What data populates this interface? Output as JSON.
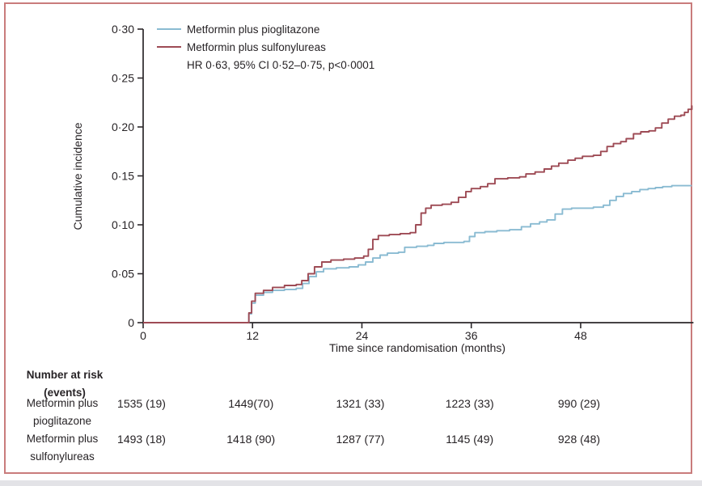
{
  "figure": {
    "border_color": "#c97c7c",
    "background": "#ffffff",
    "text_color": "#272326"
  },
  "legend": {
    "items": [
      {
        "label": "Metformin plus pioglitazone",
        "color": "#8abbd2"
      },
      {
        "label": "Metformin plus sulfonylureas",
        "color": "#9e4b55"
      }
    ],
    "annotation": "HR 0·63, 95% CI 0·52–0·75, p<0·0001"
  },
  "chart_data": {
    "type": "line",
    "subtype": "step-cumulative-incidence",
    "title": "",
    "xlabel": "Time since randomisation (months)",
    "ylabel": "Cumulative incidence",
    "xlim": [
      0,
      60.2
    ],
    "ylim": [
      0,
      0.3
    ],
    "grid": false,
    "legend_position": "top-left-inside",
    "x_ticks": [
      {
        "v": 0,
        "label": "0"
      },
      {
        "v": 12,
        "label": "12"
      },
      {
        "v": 24,
        "label": "24"
      },
      {
        "v": 36,
        "label": "36"
      },
      {
        "v": 48,
        "label": "48"
      }
    ],
    "y_ticks": [
      {
        "v": 0,
        "label": "0"
      },
      {
        "v": 0.05,
        "label": "0·05"
      },
      {
        "v": 0.1,
        "label": "0·10"
      },
      {
        "v": 0.15,
        "label": "0·15"
      },
      {
        "v": 0.2,
        "label": "0·20"
      },
      {
        "v": 0.25,
        "label": "0·25"
      },
      {
        "v": 0.3,
        "label": "0·30"
      }
    ],
    "series": [
      {
        "name": "Metformin plus pioglitazone",
        "color": "#8abbd2",
        "points": [
          [
            0,
            0
          ],
          [
            11.2,
            0
          ],
          [
            11.6,
            0.009
          ],
          [
            11.9,
            0.02
          ],
          [
            12.3,
            0.028
          ],
          [
            13.2,
            0.031
          ],
          [
            14.2,
            0.033
          ],
          [
            15.5,
            0.034
          ],
          [
            16.8,
            0.035
          ],
          [
            17.5,
            0.04
          ],
          [
            18.2,
            0.047
          ],
          [
            19.0,
            0.052
          ],
          [
            19.8,
            0.055
          ],
          [
            21.2,
            0.056
          ],
          [
            22.6,
            0.057
          ],
          [
            23.6,
            0.059
          ],
          [
            24.4,
            0.062
          ],
          [
            25.2,
            0.066
          ],
          [
            26.0,
            0.069
          ],
          [
            26.8,
            0.071
          ],
          [
            28.0,
            0.072
          ],
          [
            28.7,
            0.077
          ],
          [
            30.0,
            0.078
          ],
          [
            31.2,
            0.079
          ],
          [
            31.9,
            0.081
          ],
          [
            33.0,
            0.082
          ],
          [
            34.4,
            0.082
          ],
          [
            35.2,
            0.083
          ],
          [
            35.8,
            0.088
          ],
          [
            36.4,
            0.092
          ],
          [
            37.5,
            0.093
          ],
          [
            38.8,
            0.094
          ],
          [
            40.2,
            0.095
          ],
          [
            41.5,
            0.098
          ],
          [
            42.5,
            0.101
          ],
          [
            43.5,
            0.103
          ],
          [
            44.3,
            0.105
          ],
          [
            45.2,
            0.111
          ],
          [
            46.0,
            0.116
          ],
          [
            47.0,
            0.117
          ],
          [
            48.2,
            0.117
          ],
          [
            49.4,
            0.118
          ],
          [
            50.5,
            0.12
          ],
          [
            51.2,
            0.125
          ],
          [
            51.9,
            0.129
          ],
          [
            52.7,
            0.132
          ],
          [
            53.6,
            0.134
          ],
          [
            54.5,
            0.136
          ],
          [
            55.4,
            0.137
          ],
          [
            56.2,
            0.138
          ],
          [
            57.0,
            0.139
          ],
          [
            58.0,
            0.14
          ],
          [
            60.2,
            0.14
          ]
        ]
      },
      {
        "name": "Metformin plus sulfonylureas",
        "color": "#9e4b55",
        "points": [
          [
            0,
            0
          ],
          [
            11.2,
            0
          ],
          [
            11.6,
            0.01
          ],
          [
            11.9,
            0.022
          ],
          [
            12.3,
            0.03
          ],
          [
            13.2,
            0.033
          ],
          [
            14.2,
            0.036
          ],
          [
            15.5,
            0.038
          ],
          [
            16.8,
            0.039
          ],
          [
            17.4,
            0.043
          ],
          [
            18.1,
            0.05
          ],
          [
            18.8,
            0.057
          ],
          [
            19.6,
            0.062
          ],
          [
            20.6,
            0.064
          ],
          [
            22.0,
            0.065
          ],
          [
            23.2,
            0.066
          ],
          [
            24.2,
            0.068
          ],
          [
            24.7,
            0.075
          ],
          [
            25.2,
            0.085
          ],
          [
            25.8,
            0.089
          ],
          [
            27.0,
            0.09
          ],
          [
            28.2,
            0.091
          ],
          [
            29.3,
            0.092
          ],
          [
            29.9,
            0.1
          ],
          [
            30.5,
            0.112
          ],
          [
            31.0,
            0.117
          ],
          [
            31.6,
            0.12
          ],
          [
            32.8,
            0.121
          ],
          [
            33.8,
            0.123
          ],
          [
            34.6,
            0.128
          ],
          [
            35.4,
            0.134
          ],
          [
            36.0,
            0.137
          ],
          [
            37.0,
            0.139
          ],
          [
            37.8,
            0.142
          ],
          [
            38.6,
            0.147
          ],
          [
            40.0,
            0.148
          ],
          [
            41.3,
            0.149
          ],
          [
            42.0,
            0.152
          ],
          [
            43.0,
            0.154
          ],
          [
            44.0,
            0.157
          ],
          [
            44.8,
            0.16
          ],
          [
            45.6,
            0.163
          ],
          [
            46.6,
            0.166
          ],
          [
            47.4,
            0.168
          ],
          [
            48.2,
            0.17
          ],
          [
            49.4,
            0.171
          ],
          [
            50.2,
            0.175
          ],
          [
            50.9,
            0.18
          ],
          [
            51.6,
            0.183
          ],
          [
            52.4,
            0.185
          ],
          [
            53.0,
            0.188
          ],
          [
            53.8,
            0.193
          ],
          [
            54.6,
            0.195
          ],
          [
            55.5,
            0.196
          ],
          [
            56.2,
            0.199
          ],
          [
            56.9,
            0.204
          ],
          [
            57.6,
            0.208
          ],
          [
            58.3,
            0.211
          ],
          [
            59.0,
            0.212
          ],
          [
            59.4,
            0.215
          ],
          [
            59.8,
            0.218
          ],
          [
            60.2,
            0.222
          ]
        ]
      }
    ],
    "annotation": "HR 0·63, 95% CI 0·52–0·75, p<0·0001"
  },
  "risk_table": {
    "header_line1": "Number at risk",
    "header_line2": "(events)",
    "columns_months": [
      0,
      12,
      24,
      36,
      48
    ],
    "rows": [
      {
        "label_line1": "Metformin plus",
        "label_line2": "pioglitazone",
        "values": [
          "1535 (19)",
          "1449(70)",
          "1321 (33)",
          "1223 (33)",
          "990 (29)"
        ]
      },
      {
        "label_line1": "Metformin plus",
        "label_line2": "sulfonylureas",
        "values": [
          "1493 (18)",
          "1418 (90)",
          "1287 (77)",
          "1145 (49)",
          "928 (48)"
        ]
      }
    ]
  }
}
